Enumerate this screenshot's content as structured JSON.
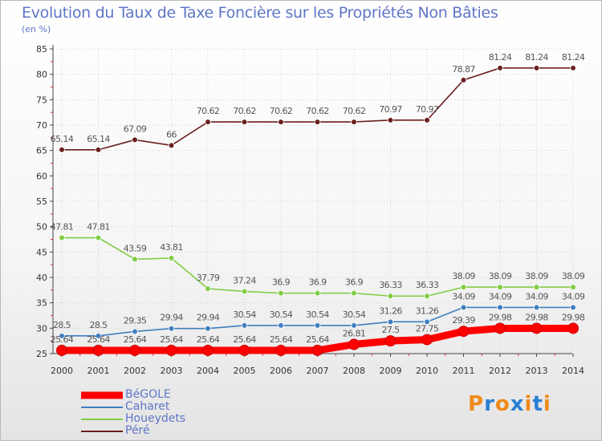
{
  "chart_data": {
    "type": "line",
    "title": "Evolution du Taux de Taxe Foncière sur les Propriétés Non Bâties",
    "ylabel": "(en %)",
    "xlabel": "",
    "ylim": [
      25,
      85
    ],
    "yticks": [
      25,
      30,
      35,
      40,
      45,
      50,
      55,
      60,
      65,
      70,
      75,
      80,
      85
    ],
    "categories": [
      "2000",
      "2001",
      "2002",
      "2003",
      "2004",
      "2005",
      "2006",
      "2007",
      "2008",
      "2009",
      "2010",
      "2011",
      "2012",
      "2013",
      "2014"
    ],
    "legend_position": "bottom-left",
    "series": [
      {
        "name": "BéGOLE",
        "color": "#ff0000",
        "values": [
          25.64,
          25.64,
          25.64,
          25.64,
          25.64,
          25.64,
          25.64,
          25.64,
          26.81,
          27.5,
          27.75,
          29.39,
          29.98,
          29.98,
          29.98
        ],
        "labels": [
          "25.64",
          "25.64",
          "25.64",
          "25.64",
          "25.64",
          "25.64",
          "25.64",
          "25.64",
          "26.81",
          "27.5",
          "27.75",
          "29.39",
          "29.98",
          "29.98",
          "29.98"
        ]
      },
      {
        "name": "Caharet",
        "color": "#3f7fbf",
        "values": [
          28.5,
          28.5,
          29.35,
          29.94,
          29.94,
          30.54,
          30.54,
          30.54,
          30.54,
          31.26,
          31.26,
          34.09,
          34.09,
          34.09,
          34.09
        ],
        "labels": [
          "28.5",
          "28.5",
          "29.35",
          "29.94",
          "29.94",
          "30.54",
          "30.54",
          "30.54",
          "30.54",
          "31.26",
          "31.26",
          "34.09",
          "34.09",
          "34.09",
          "34.09"
        ]
      },
      {
        "name": "Houeydets",
        "color": "#7fcc44",
        "values": [
          47.81,
          47.81,
          43.59,
          43.81,
          37.79,
          37.24,
          36.9,
          36.9,
          36.9,
          36.33,
          36.33,
          38.09,
          38.09,
          38.09,
          38.09
        ],
        "labels": [
          "47.81",
          "47.81",
          "43.59",
          "43.81",
          "37.79",
          "37.24",
          "36.9",
          "36.9",
          "36.9",
          "36.33",
          "36.33",
          "38.09",
          "38.09",
          "38.09",
          "38.09"
        ]
      },
      {
        "name": "Péré",
        "color": "#6b1f1f",
        "values": [
          65.14,
          65.14,
          67.09,
          66,
          70.62,
          70.62,
          70.62,
          70.62,
          70.62,
          70.97,
          70.97,
          78.87,
          81.24,
          81.24,
          81.24
        ],
        "labels": [
          "65.14",
          "65.14",
          "67.09",
          "66",
          "70.62",
          "70.62",
          "70.62",
          "70.62",
          "70.62",
          "70.97",
          "70.97",
          "78.87",
          "81.24",
          "81.24",
          "81.24"
        ]
      }
    ]
  },
  "logo": {
    "letters": [
      "P",
      "r",
      "o",
      "x",
      "i",
      "t",
      "i"
    ],
    "colors": [
      "#f08a1c",
      "#2a7fd4",
      "#f08a1c",
      "#2a7fd4",
      "#f08a1c",
      "#2a7fd4",
      "#f08a1c"
    ]
  }
}
